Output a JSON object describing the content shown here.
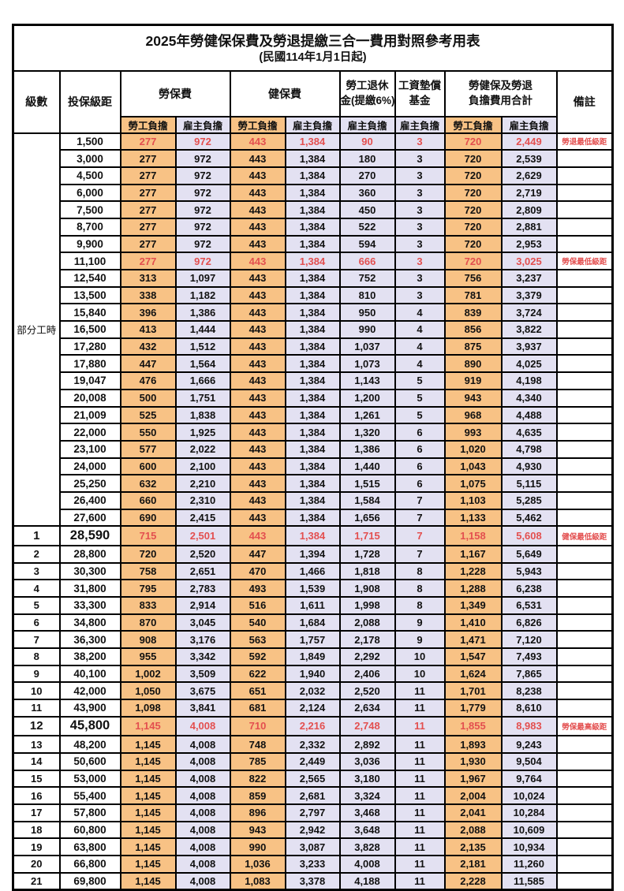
{
  "title": "2025年勞健保保費及勞退提繳三合一費用對照參考用表",
  "subtitle": "(民國114年1月1日起)",
  "colors": {
    "employee_bg": "#f8c285",
    "employer_bg": "#e3e1f2",
    "highlight_red": "#e34f4f",
    "border": "#000000"
  },
  "header": {
    "level": "級數",
    "bracket": "投保級距",
    "labor_insurance": "勞保費",
    "health_insurance": "健保費",
    "pension_line1": "勞工退休",
    "pension_line2": "金(提繳6%)",
    "wage_fund_line1": "工資墊償",
    "wage_fund_line2": "基金",
    "total_line1": "勞健保及勞退",
    "total_line2": "負擔費用合計",
    "note": "備註",
    "employee_share": "勞工負擔",
    "employer_share": "雇主負擔"
  },
  "part_time_label": "部分工時",
  "rows": [
    {
      "level": "",
      "bracket": "1,500",
      "li_emp": "277",
      "li_er": "972",
      "hi_emp": "443",
      "hi_er": "1,384",
      "pension": "90",
      "fund": "3",
      "tot_emp": "720",
      "tot_er": "2,449",
      "note": "勞退最低級距",
      "red": true
    },
    {
      "level": "",
      "bracket": "3,000",
      "li_emp": "277",
      "li_er": "972",
      "hi_emp": "443",
      "hi_er": "1,384",
      "pension": "180",
      "fund": "3",
      "tot_emp": "720",
      "tot_er": "2,539",
      "note": ""
    },
    {
      "level": "",
      "bracket": "4,500",
      "li_emp": "277",
      "li_er": "972",
      "hi_emp": "443",
      "hi_er": "1,384",
      "pension": "270",
      "fund": "3",
      "tot_emp": "720",
      "tot_er": "2,629",
      "note": ""
    },
    {
      "level": "",
      "bracket": "6,000",
      "li_emp": "277",
      "li_er": "972",
      "hi_emp": "443",
      "hi_er": "1,384",
      "pension": "360",
      "fund": "3",
      "tot_emp": "720",
      "tot_er": "2,719",
      "note": ""
    },
    {
      "level": "",
      "bracket": "7,500",
      "li_emp": "277",
      "li_er": "972",
      "hi_emp": "443",
      "hi_er": "1,384",
      "pension": "450",
      "fund": "3",
      "tot_emp": "720",
      "tot_er": "2,809",
      "note": ""
    },
    {
      "level": "",
      "bracket": "8,700",
      "li_emp": "277",
      "li_er": "972",
      "hi_emp": "443",
      "hi_er": "1,384",
      "pension": "522",
      "fund": "3",
      "tot_emp": "720",
      "tot_er": "2,881",
      "note": ""
    },
    {
      "level": "",
      "bracket": "9,900",
      "li_emp": "277",
      "li_er": "972",
      "hi_emp": "443",
      "hi_er": "1,384",
      "pension": "594",
      "fund": "3",
      "tot_emp": "720",
      "tot_er": "2,953",
      "note": ""
    },
    {
      "level": "",
      "bracket": "11,100",
      "li_emp": "277",
      "li_er": "972",
      "hi_emp": "443",
      "hi_er": "1,384",
      "pension": "666",
      "fund": "3",
      "tot_emp": "720",
      "tot_er": "3,025",
      "note": "勞保最低級距",
      "red": true
    },
    {
      "level": "",
      "bracket": "12,540",
      "li_emp": "313",
      "li_er": "1,097",
      "hi_emp": "443",
      "hi_er": "1,384",
      "pension": "752",
      "fund": "3",
      "tot_emp": "756",
      "tot_er": "3,237",
      "note": ""
    },
    {
      "level": "",
      "bracket": "13,500",
      "li_emp": "338",
      "li_er": "1,182",
      "hi_emp": "443",
      "hi_er": "1,384",
      "pension": "810",
      "fund": "3",
      "tot_emp": "781",
      "tot_er": "3,379",
      "note": ""
    },
    {
      "level": "",
      "bracket": "15,840",
      "li_emp": "396",
      "li_er": "1,386",
      "hi_emp": "443",
      "hi_er": "1,384",
      "pension": "950",
      "fund": "4",
      "tot_emp": "839",
      "tot_er": "3,724",
      "note": ""
    },
    {
      "level": "",
      "bracket": "16,500",
      "li_emp": "413",
      "li_er": "1,444",
      "hi_emp": "443",
      "hi_er": "1,384",
      "pension": "990",
      "fund": "4",
      "tot_emp": "856",
      "tot_er": "3,822",
      "note": ""
    },
    {
      "level": "",
      "bracket": "17,280",
      "li_emp": "432",
      "li_er": "1,512",
      "hi_emp": "443",
      "hi_er": "1,384",
      "pension": "1,037",
      "fund": "4",
      "tot_emp": "875",
      "tot_er": "3,937",
      "note": ""
    },
    {
      "level": "",
      "bracket": "17,880",
      "li_emp": "447",
      "li_er": "1,564",
      "hi_emp": "443",
      "hi_er": "1,384",
      "pension": "1,073",
      "fund": "4",
      "tot_emp": "890",
      "tot_er": "4,025",
      "note": ""
    },
    {
      "level": "",
      "bracket": "19,047",
      "li_emp": "476",
      "li_er": "1,666",
      "hi_emp": "443",
      "hi_er": "1,384",
      "pension": "1,143",
      "fund": "5",
      "tot_emp": "919",
      "tot_er": "4,198",
      "note": ""
    },
    {
      "level": "",
      "bracket": "20,008",
      "li_emp": "500",
      "li_er": "1,751",
      "hi_emp": "443",
      "hi_er": "1,384",
      "pension": "1,200",
      "fund": "5",
      "tot_emp": "943",
      "tot_er": "4,340",
      "note": ""
    },
    {
      "level": "",
      "bracket": "21,009",
      "li_emp": "525",
      "li_er": "1,838",
      "hi_emp": "443",
      "hi_er": "1,384",
      "pension": "1,261",
      "fund": "5",
      "tot_emp": "968",
      "tot_er": "4,488",
      "note": ""
    },
    {
      "level": "",
      "bracket": "22,000",
      "li_emp": "550",
      "li_er": "1,925",
      "hi_emp": "443",
      "hi_er": "1,384",
      "pension": "1,320",
      "fund": "6",
      "tot_emp": "993",
      "tot_er": "4,635",
      "note": ""
    },
    {
      "level": "",
      "bracket": "23,100",
      "li_emp": "577",
      "li_er": "2,022",
      "hi_emp": "443",
      "hi_er": "1,384",
      "pension": "1,386",
      "fund": "6",
      "tot_emp": "1,020",
      "tot_er": "4,798",
      "note": ""
    },
    {
      "level": "",
      "bracket": "24,000",
      "li_emp": "600",
      "li_er": "2,100",
      "hi_emp": "443",
      "hi_er": "1,384",
      "pension": "1,440",
      "fund": "6",
      "tot_emp": "1,043",
      "tot_er": "4,930",
      "note": ""
    },
    {
      "level": "",
      "bracket": "25,250",
      "li_emp": "632",
      "li_er": "2,210",
      "hi_emp": "443",
      "hi_er": "1,384",
      "pension": "1,515",
      "fund": "6",
      "tot_emp": "1,075",
      "tot_er": "5,115",
      "note": ""
    },
    {
      "level": "",
      "bracket": "26,400",
      "li_emp": "660",
      "li_er": "2,310",
      "hi_emp": "443",
      "hi_er": "1,384",
      "pension": "1,584",
      "fund": "7",
      "tot_emp": "1,103",
      "tot_er": "5,285",
      "note": ""
    },
    {
      "level": "",
      "bracket": "27,600",
      "li_emp": "690",
      "li_er": "2,415",
      "hi_emp": "443",
      "hi_er": "1,384",
      "pension": "1,656",
      "fund": "7",
      "tot_emp": "1,133",
      "tot_er": "5,462",
      "note": ""
    },
    {
      "level": "1",
      "bracket": "28,590",
      "li_emp": "715",
      "li_er": "2,501",
      "hi_emp": "443",
      "hi_er": "1,384",
      "pension": "1,715",
      "fund": "7",
      "tot_emp": "1,158",
      "tot_er": "5,608",
      "note": "健保最低級距",
      "red": true,
      "big": true
    },
    {
      "level": "2",
      "bracket": "28,800",
      "li_emp": "720",
      "li_er": "2,520",
      "hi_emp": "447",
      "hi_er": "1,394",
      "pension": "1,728",
      "fund": "7",
      "tot_emp": "1,167",
      "tot_er": "5,649",
      "note": ""
    },
    {
      "level": "3",
      "bracket": "30,300",
      "li_emp": "758",
      "li_er": "2,651",
      "hi_emp": "470",
      "hi_er": "1,466",
      "pension": "1,818",
      "fund": "8",
      "tot_emp": "1,228",
      "tot_er": "5,943",
      "note": ""
    },
    {
      "level": "4",
      "bracket": "31,800",
      "li_emp": "795",
      "li_er": "2,783",
      "hi_emp": "493",
      "hi_er": "1,539",
      "pension": "1,908",
      "fund": "8",
      "tot_emp": "1,288",
      "tot_er": "6,238",
      "note": ""
    },
    {
      "level": "5",
      "bracket": "33,300",
      "li_emp": "833",
      "li_er": "2,914",
      "hi_emp": "516",
      "hi_er": "1,611",
      "pension": "1,998",
      "fund": "8",
      "tot_emp": "1,349",
      "tot_er": "6,531",
      "note": ""
    },
    {
      "level": "6",
      "bracket": "34,800",
      "li_emp": "870",
      "li_er": "3,045",
      "hi_emp": "540",
      "hi_er": "1,684",
      "pension": "2,088",
      "fund": "9",
      "tot_emp": "1,410",
      "tot_er": "6,826",
      "note": ""
    },
    {
      "level": "7",
      "bracket": "36,300",
      "li_emp": "908",
      "li_er": "3,176",
      "hi_emp": "563",
      "hi_er": "1,757",
      "pension": "2,178",
      "fund": "9",
      "tot_emp": "1,471",
      "tot_er": "7,120",
      "note": ""
    },
    {
      "level": "8",
      "bracket": "38,200",
      "li_emp": "955",
      "li_er": "3,342",
      "hi_emp": "592",
      "hi_er": "1,849",
      "pension": "2,292",
      "fund": "10",
      "tot_emp": "1,547",
      "tot_er": "7,493",
      "note": ""
    },
    {
      "level": "9",
      "bracket": "40,100",
      "li_emp": "1,002",
      "li_er": "3,509",
      "hi_emp": "622",
      "hi_er": "1,940",
      "pension": "2,406",
      "fund": "10",
      "tot_emp": "1,624",
      "tot_er": "7,865",
      "note": ""
    },
    {
      "level": "10",
      "bracket": "42,000",
      "li_emp": "1,050",
      "li_er": "3,675",
      "hi_emp": "651",
      "hi_er": "2,032",
      "pension": "2,520",
      "fund": "11",
      "tot_emp": "1,701",
      "tot_er": "8,238",
      "note": ""
    },
    {
      "level": "11",
      "bracket": "43,900",
      "li_emp": "1,098",
      "li_er": "3,841",
      "hi_emp": "681",
      "hi_er": "2,124",
      "pension": "2,634",
      "fund": "11",
      "tot_emp": "1,779",
      "tot_er": "8,610",
      "note": ""
    },
    {
      "level": "12",
      "bracket": "45,800",
      "li_emp": "1,145",
      "li_er": "4,008",
      "hi_emp": "710",
      "hi_er": "2,216",
      "pension": "2,748",
      "fund": "11",
      "tot_emp": "1,855",
      "tot_er": "8,983",
      "note": "勞保最高級距",
      "red": true,
      "big": true
    },
    {
      "level": "13",
      "bracket": "48,200",
      "li_emp": "1,145",
      "li_er": "4,008",
      "hi_emp": "748",
      "hi_er": "2,332",
      "pension": "2,892",
      "fund": "11",
      "tot_emp": "1,893",
      "tot_er": "9,243",
      "note": ""
    },
    {
      "level": "14",
      "bracket": "50,600",
      "li_emp": "1,145",
      "li_er": "4,008",
      "hi_emp": "785",
      "hi_er": "2,449",
      "pension": "3,036",
      "fund": "11",
      "tot_emp": "1,930",
      "tot_er": "9,504",
      "note": ""
    },
    {
      "level": "15",
      "bracket": "53,000",
      "li_emp": "1,145",
      "li_er": "4,008",
      "hi_emp": "822",
      "hi_er": "2,565",
      "pension": "3,180",
      "fund": "11",
      "tot_emp": "1,967",
      "tot_er": "9,764",
      "note": ""
    },
    {
      "level": "16",
      "bracket": "55,400",
      "li_emp": "1,145",
      "li_er": "4,008",
      "hi_emp": "859",
      "hi_er": "2,681",
      "pension": "3,324",
      "fund": "11",
      "tot_emp": "2,004",
      "tot_er": "10,024",
      "note": ""
    },
    {
      "level": "17",
      "bracket": "57,800",
      "li_emp": "1,145",
      "li_er": "4,008",
      "hi_emp": "896",
      "hi_er": "2,797",
      "pension": "3,468",
      "fund": "11",
      "tot_emp": "2,041",
      "tot_er": "10,284",
      "note": ""
    },
    {
      "level": "18",
      "bracket": "60,800",
      "li_emp": "1,145",
      "li_er": "4,008",
      "hi_emp": "943",
      "hi_er": "2,942",
      "pension": "3,648",
      "fund": "11",
      "tot_emp": "2,088",
      "tot_er": "10,609",
      "note": ""
    },
    {
      "level": "19",
      "bracket": "63,800",
      "li_emp": "1,145",
      "li_er": "4,008",
      "hi_emp": "990",
      "hi_er": "3,087",
      "pension": "3,828",
      "fund": "11",
      "tot_emp": "2,135",
      "tot_er": "10,934",
      "note": ""
    },
    {
      "level": "20",
      "bracket": "66,800",
      "li_emp": "1,145",
      "li_er": "4,008",
      "hi_emp": "1,036",
      "hi_er": "3,233",
      "pension": "4,008",
      "fund": "11",
      "tot_emp": "2,181",
      "tot_er": "11,260",
      "note": ""
    },
    {
      "level": "21",
      "bracket": "69,800",
      "li_emp": "1,145",
      "li_er": "4,008",
      "hi_emp": "1,083",
      "hi_er": "3,378",
      "pension": "4,188",
      "fund": "11",
      "tot_emp": "2,228",
      "tot_er": "11,585",
      "note": ""
    }
  ]
}
